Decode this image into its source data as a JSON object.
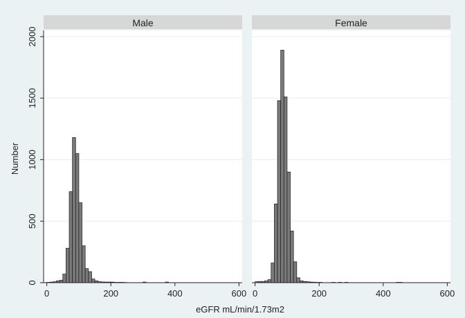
{
  "chart_data": {
    "type": "bar",
    "ylabel": "Number",
    "xlabel": "eGFR mL/min/1.73m2",
    "xlim": [
      -10,
      610
    ],
    "ylim": [
      0,
      2050
    ],
    "bin_width": 10,
    "xticks": [
      0,
      200,
      400,
      600
    ],
    "yticks": [
      0,
      500,
      1000,
      1500,
      2000
    ],
    "grid": true,
    "panels": [
      {
        "name": "Male",
        "bins": [
          {
            "x": 0,
            "y": 3
          },
          {
            "x": 10,
            "y": 5
          },
          {
            "x": 20,
            "y": 8
          },
          {
            "x": 30,
            "y": 15
          },
          {
            "x": 40,
            "y": 20
          },
          {
            "x": 50,
            "y": 70
          },
          {
            "x": 60,
            "y": 280
          },
          {
            "x": 70,
            "y": 740
          },
          {
            "x": 80,
            "y": 1180
          },
          {
            "x": 90,
            "y": 1050
          },
          {
            "x": 100,
            "y": 650
          },
          {
            "x": 110,
            "y": 300
          },
          {
            "x": 120,
            "y": 115
          },
          {
            "x": 130,
            "y": 90
          },
          {
            "x": 140,
            "y": 30
          },
          {
            "x": 150,
            "y": 15
          },
          {
            "x": 160,
            "y": 8
          },
          {
            "x": 170,
            "y": 6
          },
          {
            "x": 180,
            "y": 5
          },
          {
            "x": 190,
            "y": 5
          },
          {
            "x": 200,
            "y": 5
          },
          {
            "x": 210,
            "y": 3
          },
          {
            "x": 220,
            "y": 3
          },
          {
            "x": 230,
            "y": 3
          },
          {
            "x": 240,
            "y": 2
          },
          {
            "x": 300,
            "y": 5
          },
          {
            "x": 370,
            "y": 5
          }
        ]
      },
      {
        "name": "Female",
        "bins": [
          {
            "x": 0,
            "y": 8
          },
          {
            "x": 10,
            "y": 10
          },
          {
            "x": 20,
            "y": 10
          },
          {
            "x": 30,
            "y": 15
          },
          {
            "x": 40,
            "y": 25
          },
          {
            "x": 50,
            "y": 160
          },
          {
            "x": 60,
            "y": 640
          },
          {
            "x": 70,
            "y": 1480
          },
          {
            "x": 80,
            "y": 1890
          },
          {
            "x": 90,
            "y": 1510
          },
          {
            "x": 100,
            "y": 900
          },
          {
            "x": 110,
            "y": 420
          },
          {
            "x": 120,
            "y": 170
          },
          {
            "x": 130,
            "y": 40
          },
          {
            "x": 140,
            "y": 15
          },
          {
            "x": 150,
            "y": 10
          },
          {
            "x": 160,
            "y": 8
          },
          {
            "x": 170,
            "y": 5
          },
          {
            "x": 180,
            "y": 4
          },
          {
            "x": 190,
            "y": 3
          },
          {
            "x": 200,
            "y": 3
          },
          {
            "x": 240,
            "y": 3
          },
          {
            "x": 260,
            "y": 3
          },
          {
            "x": 280,
            "y": 3
          },
          {
            "x": 440,
            "y": 3
          },
          {
            "x": 450,
            "y": 3
          }
        ]
      }
    ]
  },
  "colors": {
    "bar_fill": "#7a7a7a",
    "bar_stroke": "#1a1a1a",
    "header_fill": "#d7d7d7",
    "plot_bg": "#ffffff",
    "grid": "#e8eef0"
  }
}
